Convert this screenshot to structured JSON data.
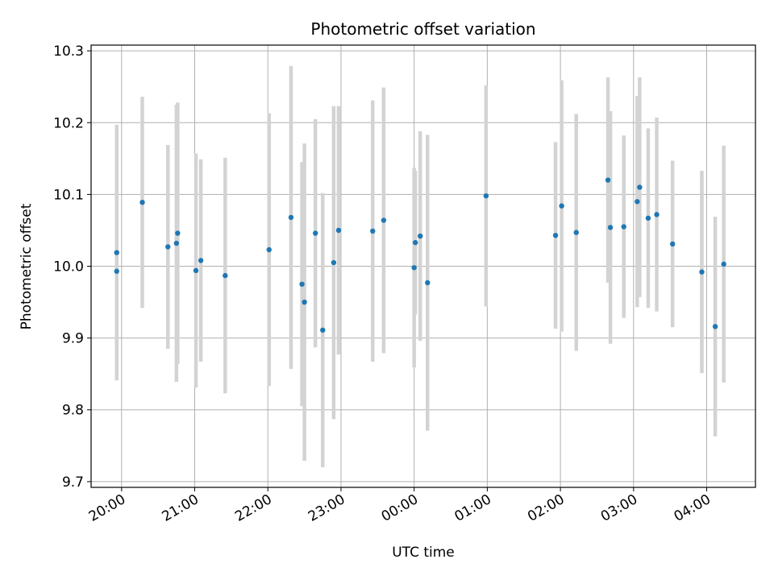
{
  "chart_data": {
    "type": "scatter",
    "title": "Photometric offset variation",
    "xlabel": "UTC time",
    "ylabel": "Photometric offset",
    "x_axis": "time (UTC), first timestamp on 19:xx of night, continuing past midnight",
    "xlim": [
      "19:35",
      "04:40"
    ],
    "ylim": [
      9.692,
      10.308
    ],
    "x_ticks": [
      "20:00",
      "21:00",
      "22:00",
      "23:00",
      "00:00",
      "01:00",
      "02:00",
      "03:00",
      "04:00"
    ],
    "y_ticks": [
      "9.7",
      "9.8",
      "9.9",
      "10.0",
      "10.1",
      "10.2",
      "10.3"
    ],
    "grid": true,
    "marker_color": "#1f77b4",
    "errorbar_color": "#d3d3d3",
    "points": [
      {
        "x": "19:56",
        "y": 9.993,
        "err": 0.15
      },
      {
        "x": "19:56",
        "y": 10.019,
        "err": 0.178
      },
      {
        "x": "20:17",
        "y": 10.089,
        "err": 0.147
      },
      {
        "x": "20:38",
        "y": 10.027,
        "err": 0.142
      },
      {
        "x": "20:45",
        "y": 10.032,
        "err": 0.193
      },
      {
        "x": "20:46",
        "y": 10.046,
        "err": 0.182
      },
      {
        "x": "21:01",
        "y": 9.994,
        "err": 0.163
      },
      {
        "x": "21:05",
        "y": 10.008,
        "err": 0.141
      },
      {
        "x": "21:25",
        "y": 9.987,
        "err": 0.164
      },
      {
        "x": "22:01",
        "y": 10.023,
        "err": 0.19
      },
      {
        "x": "22:19",
        "y": 10.068,
        "err": 0.211
      },
      {
        "x": "22:28",
        "y": 9.975,
        "err": 0.17
      },
      {
        "x": "22:30",
        "y": 9.95,
        "err": 0.221
      },
      {
        "x": "22:39",
        "y": 10.046,
        "err": 0.159
      },
      {
        "x": "22:45",
        "y": 9.911,
        "err": 0.191
      },
      {
        "x": "22:54",
        "y": 10.005,
        "err": 0.218
      },
      {
        "x": "22:58",
        "y": 10.05,
        "err": 0.173
      },
      {
        "x": "23:26",
        "y": 10.049,
        "err": 0.182
      },
      {
        "x": "23:35",
        "y": 10.064,
        "err": 0.185
      },
      {
        "x": "00:00",
        "y": 9.998,
        "err": 0.139
      },
      {
        "x": "00:01",
        "y": 10.033,
        "err": 0.1
      },
      {
        "x": "00:05",
        "y": 10.042,
        "err": 0.146
      },
      {
        "x": "00:11",
        "y": 9.977,
        "err": 0.206
      },
      {
        "x": "00:59",
        "y": 10.098,
        "err": 0.154
      },
      {
        "x": "01:56",
        "y": 10.043,
        "err": 0.13
      },
      {
        "x": "02:01",
        "y": 10.084,
        "err": 0.175
      },
      {
        "x": "02:13",
        "y": 10.047,
        "err": 0.165
      },
      {
        "x": "02:39",
        "y": 10.12,
        "err": 0.143
      },
      {
        "x": "02:41",
        "y": 10.054,
        "err": 0.162
      },
      {
        "x": "02:52",
        "y": 10.055,
        "err": 0.127
      },
      {
        "x": "03:03",
        "y": 10.09,
        "err": 0.147
      },
      {
        "x": "03:05",
        "y": 10.11,
        "err": 0.153
      },
      {
        "x": "03:12",
        "y": 10.067,
        "err": 0.125
      },
      {
        "x": "03:19",
        "y": 10.072,
        "err": 0.135
      },
      {
        "x": "03:32",
        "y": 10.031,
        "err": 0.116
      },
      {
        "x": "03:56",
        "y": 9.992,
        "err": 0.141
      },
      {
        "x": "04:07",
        "y": 9.916,
        "err": 0.153
      },
      {
        "x": "04:14",
        "y": 10.003,
        "err": 0.165
      }
    ]
  }
}
